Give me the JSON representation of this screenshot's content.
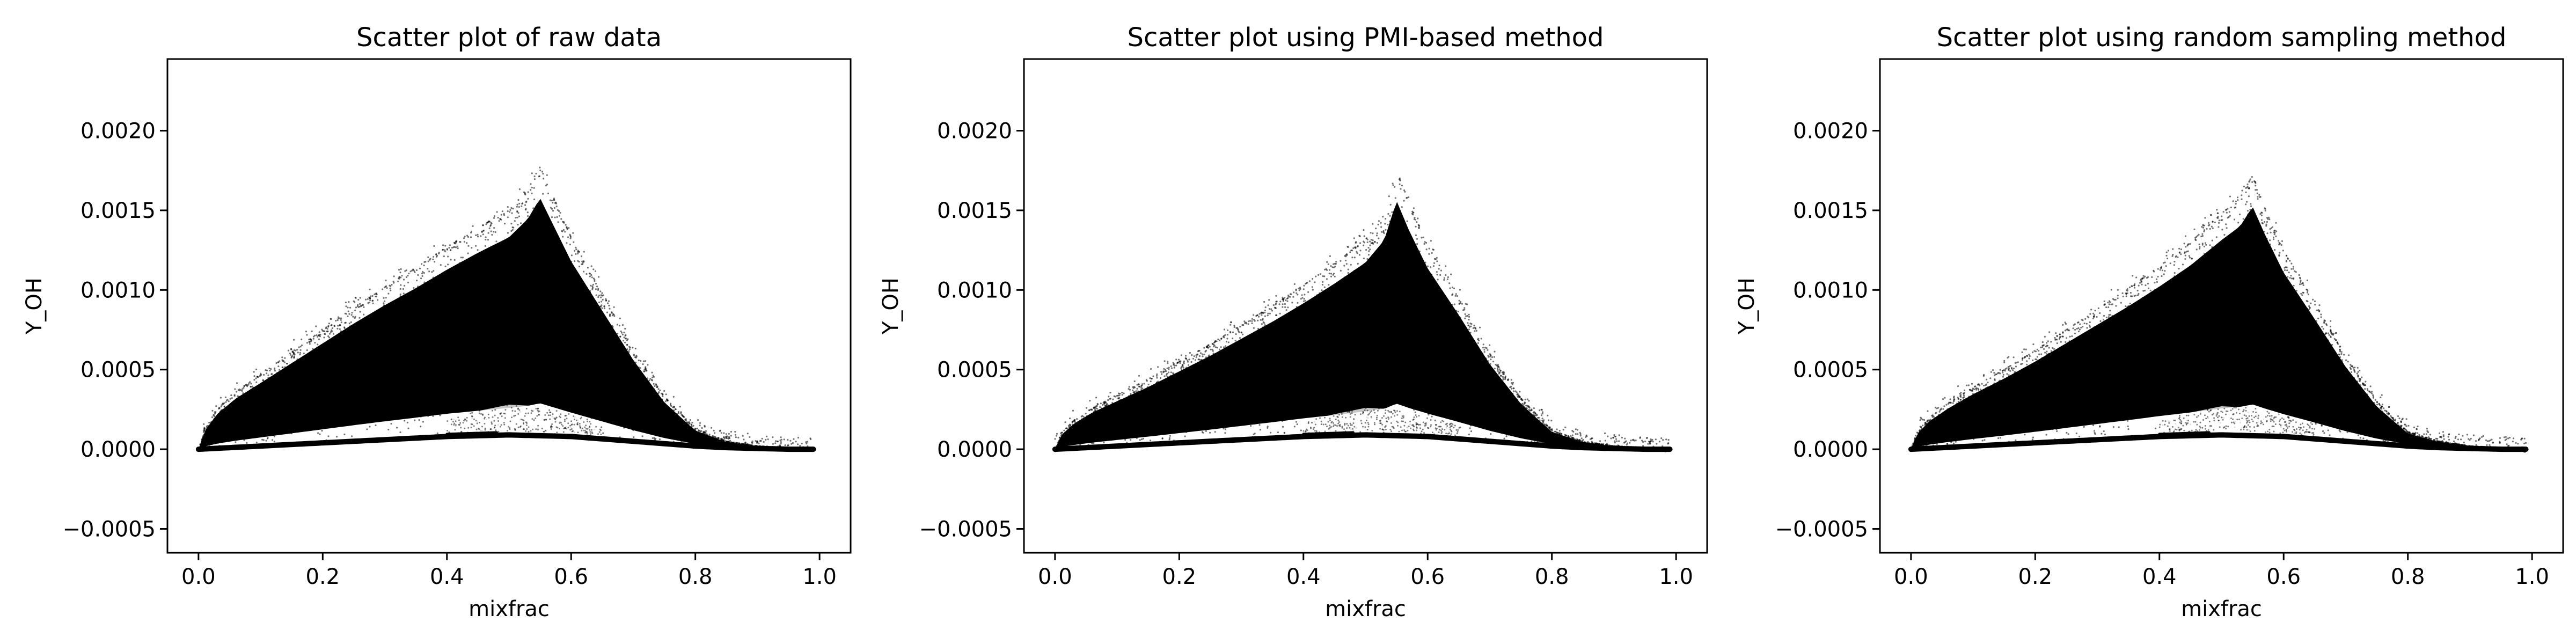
{
  "chart_data": [
    {
      "type": "scatter",
      "title": "Scatter plot of raw data",
      "xlabel": "mixfrac",
      "ylabel": "Y_OH",
      "xlim": [
        -0.05,
        1.05
      ],
      "ylim": [
        -0.00065,
        0.00245
      ],
      "xticks": [
        0.0,
        0.2,
        0.4,
        0.6,
        0.8,
        1.0
      ],
      "xtick_labels": [
        "0.0",
        "0.2",
        "0.4",
        "0.6",
        "0.8",
        "1.0"
      ],
      "yticks": [
        -0.0005,
        0.0,
        0.0005,
        0.001,
        0.0015,
        0.002
      ],
      "ytick_labels": [
        "−0.0005",
        "0.0000",
        "0.0005",
        "0.0010",
        "0.0015",
        "0.0020"
      ],
      "grid": false,
      "marker_color": "#000000",
      "upper_envelope": {
        "x": [
          0.0,
          0.01,
          0.03,
          0.06,
          0.1,
          0.15,
          0.2,
          0.25,
          0.3,
          0.35,
          0.4,
          0.45,
          0.5,
          0.53,
          0.55,
          0.57,
          0.6,
          0.65,
          0.7,
          0.75,
          0.8,
          0.85,
          0.9,
          0.95,
          0.99
        ],
        "y": [
          0.0,
          0.00013,
          0.00025,
          0.00036,
          0.00047,
          0.00061,
          0.00075,
          0.00089,
          0.00102,
          0.00114,
          0.00127,
          0.00139,
          0.0015,
          0.00163,
          0.00178,
          0.0016,
          0.00133,
          0.00098,
          0.00063,
          0.00033,
          0.00013,
          5e-05,
          2e-05,
          1e-05,
          0.0
        ]
      },
      "lower_envelope": {
        "x": [
          0.0,
          0.1,
          0.2,
          0.3,
          0.4,
          0.5,
          0.6,
          0.7,
          0.8,
          0.85,
          0.9,
          0.95,
          0.99
        ],
        "y": [
          0.0,
          2e-05,
          4e-05,
          6e-05,
          8e-05,
          9e-05,
          8e-05,
          5e-05,
          2e-05,
          1e-05,
          5e-06,
          0.0,
          0.0
        ]
      },
      "sparse_band": {
        "x": [
          0.4,
          0.45,
          0.5,
          0.55,
          0.6,
          0.65
        ],
        "y_low": [
          9e-05,
          0.0001,
          0.00011,
          0.00011,
          0.0001,
          9e-05
        ],
        "y_high": [
          0.00018,
          0.00024,
          0.00028,
          0.00027,
          0.00022,
          0.00016
        ]
      }
    },
    {
      "type": "scatter",
      "title": "Scatter plot using PMI-based method",
      "xlabel": "mixfrac",
      "ylabel": "Y_OH",
      "xlim": [
        -0.05,
        1.05
      ],
      "ylim": [
        -0.00065,
        0.00245
      ],
      "xticks": [
        0.0,
        0.2,
        0.4,
        0.6,
        0.8,
        1.0
      ],
      "xtick_labels": [
        "0.0",
        "0.2",
        "0.4",
        "0.6",
        "0.8",
        "1.0"
      ],
      "yticks": [
        -0.0005,
        0.0,
        0.0005,
        0.001,
        0.0015,
        0.002
      ],
      "ytick_labels": [
        "−0.0005",
        "0.0000",
        "0.0005",
        "0.0010",
        "0.0015",
        "0.0020"
      ],
      "grid": false,
      "marker_color": "#000000",
      "upper_envelope": {
        "x": [
          0.0,
          0.01,
          0.03,
          0.06,
          0.1,
          0.15,
          0.2,
          0.25,
          0.3,
          0.35,
          0.4,
          0.45,
          0.5,
          0.53,
          0.55,
          0.57,
          0.6,
          0.65,
          0.7,
          0.75,
          0.8,
          0.85,
          0.9,
          0.95,
          0.99
        ],
        "y": [
          0.0,
          0.0001,
          0.00018,
          0.00026,
          0.00034,
          0.00044,
          0.00055,
          0.00066,
          0.00078,
          0.0009,
          0.00103,
          0.00117,
          0.00132,
          0.00148,
          0.00176,
          0.00155,
          0.00128,
          0.00095,
          0.0006,
          0.00032,
          0.00012,
          5e-05,
          2e-05,
          1e-05,
          0.0
        ]
      },
      "lower_envelope": {
        "x": [
          0.0,
          0.1,
          0.2,
          0.3,
          0.4,
          0.5,
          0.6,
          0.7,
          0.8,
          0.85,
          0.9,
          0.95,
          0.99
        ],
        "y": [
          0.0,
          2e-05,
          4e-05,
          6e-05,
          8e-05,
          9e-05,
          8e-05,
          5e-05,
          2e-05,
          1e-05,
          5e-06,
          0.0,
          0.0
        ]
      },
      "sparse_band": {
        "x": [
          0.4,
          0.45,
          0.5,
          0.55,
          0.6,
          0.65
        ],
        "y_low": [
          9e-05,
          0.0001,
          0.00011,
          0.00011,
          0.0001,
          9e-05
        ],
        "y_high": [
          0.00017,
          0.00022,
          0.00026,
          0.00025,
          0.0002,
          0.00015
        ]
      }
    },
    {
      "type": "scatter",
      "title": "Scatter plot using random sampling method",
      "xlabel": "mixfrac",
      "ylabel": "Y_OH",
      "xlim": [
        -0.05,
        1.05
      ],
      "ylim": [
        -0.00065,
        0.00245
      ],
      "xticks": [
        0.0,
        0.2,
        0.4,
        0.6,
        0.8,
        1.0
      ],
      "xtick_labels": [
        "0.0",
        "0.2",
        "0.4",
        "0.6",
        "0.8",
        "1.0"
      ],
      "yticks": [
        -0.0005,
        0.0,
        0.0005,
        0.001,
        0.0015,
        0.002
      ],
      "ytick_labels": [
        "−0.0005",
        "0.0000",
        "0.0005",
        "0.0010",
        "0.0015",
        "0.0020"
      ],
      "grid": false,
      "marker_color": "#000000",
      "upper_envelope": {
        "x": [
          0.0,
          0.01,
          0.03,
          0.06,
          0.1,
          0.15,
          0.2,
          0.25,
          0.3,
          0.35,
          0.4,
          0.45,
          0.5,
          0.53,
          0.55,
          0.57,
          0.6,
          0.65,
          0.7,
          0.75,
          0.8,
          0.85,
          0.9,
          0.95,
          0.99
        ],
        "y": [
          0.0,
          0.00011,
          0.0002,
          0.00029,
          0.00039,
          0.0005,
          0.00062,
          0.00075,
          0.00088,
          0.00101,
          0.00115,
          0.0013,
          0.00148,
          0.00158,
          0.00172,
          0.00152,
          0.00125,
          0.00092,
          0.00058,
          0.0003,
          0.00011,
          5e-05,
          2e-05,
          1e-05,
          0.0
        ]
      },
      "lower_envelope": {
        "x": [
          0.0,
          0.1,
          0.2,
          0.3,
          0.4,
          0.5,
          0.6,
          0.7,
          0.8,
          0.85,
          0.9,
          0.95,
          0.99
        ],
        "y": [
          0.0,
          2e-05,
          4e-05,
          6e-05,
          8e-05,
          9e-05,
          8e-05,
          5e-05,
          2e-05,
          1e-05,
          5e-06,
          0.0,
          0.0
        ]
      },
      "sparse_band": {
        "x": [
          0.4,
          0.45,
          0.5,
          0.55,
          0.6,
          0.65
        ],
        "y_low": [
          9e-05,
          0.0001,
          0.00011,
          0.00011,
          0.0001,
          9e-05
        ],
        "y_high": [
          0.00018,
          0.00023,
          0.00027,
          0.00026,
          0.00021,
          0.00016
        ]
      }
    }
  ]
}
